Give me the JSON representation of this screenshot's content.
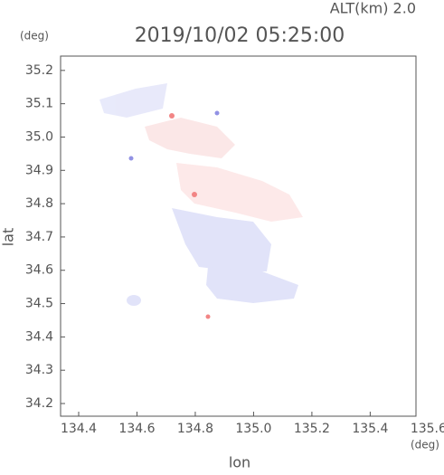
{
  "chart_data": {
    "type": "map",
    "altitude_label": "ALT(km) 2.0",
    "title": "2019/10/02 05:25:00",
    "y_unit": "(deg)",
    "x_unit": "(deg)",
    "xlabel": "lon",
    "ylabel": "lat",
    "xlim": [
      134.338,
      135.557
    ],
    "ylim": [
      34.162,
      35.243
    ],
    "xticks": [
      134.4,
      134.6,
      134.8,
      {
        "value": 135,
        "label": "135.0"
      },
      135.2,
      135.4,
      135.6
    ],
    "yticks": [
      34.2,
      34.3,
      34.4,
      34.5,
      34.6,
      34.7,
      34.8,
      34.9,
      {
        "value": 35,
        "label": "35.0"
      },
      35.1,
      35.2
    ]
  }
}
